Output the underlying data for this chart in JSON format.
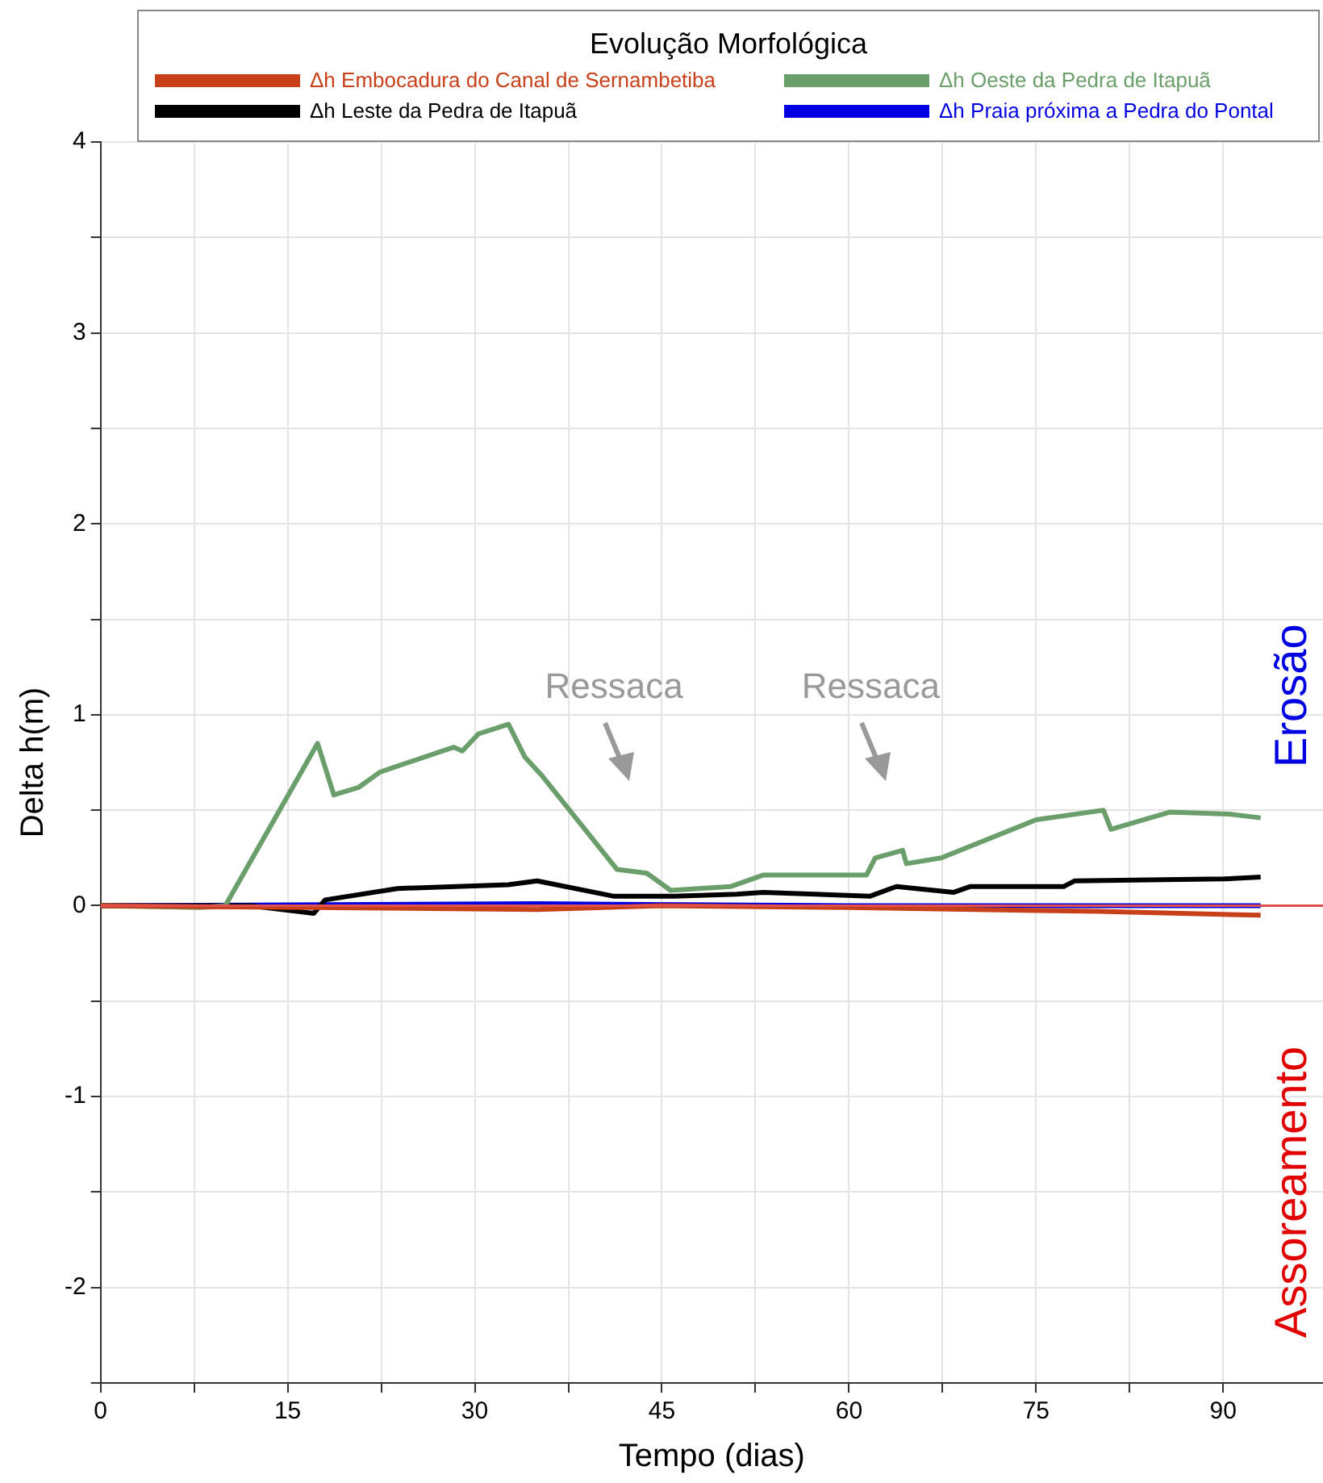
{
  "chart_data": {
    "type": "line",
    "legend_title": "Evolução Morfológica",
    "xlabel": "Tempo (dias)",
    "ylabel": "Delta h(m)",
    "xlim": [
      0,
      98
    ],
    "xticks": [
      0,
      {
        "value": 7.5,
        "label": null
      },
      15,
      {
        "value": 22.5,
        "label": null
      },
      30,
      {
        "value": 37.5,
        "label": null
      },
      45,
      {
        "value": 52.5,
        "label": null
      },
      60,
      {
        "value": 67.5,
        "label": null
      },
      75,
      {
        "value": 82.5,
        "label": null
      },
      90
    ],
    "ylim": [
      -2.5,
      4
    ],
    "yticks": [
      {
        "value": -2.5,
        "label": null
      },
      -2,
      {
        "value": -1.5,
        "label": null
      },
      -1,
      {
        "value": -0.5,
        "label": null
      },
      0,
      {
        "value": 0.5,
        "label": null
      },
      1,
      {
        "value": 1.5,
        "label": null
      },
      2,
      {
        "value": 2.5,
        "label": null
      },
      3,
      {
        "value": 3.5,
        "label": null
      },
      4
    ],
    "grid": true,
    "legend": "top",
    "marker": "none",
    "line_style": "solid",
    "ref_lines": [
      {
        "axis": "y",
        "value": 0,
        "color": "#e05050"
      }
    ],
    "annotations": [
      "Ressaca",
      "Ressaca",
      "Erosão",
      "Assoreamento"
    ],
    "series": [
      {
        "name": "Δh Embocadura do Canal de Sernambetiba",
        "color": "#c8401a",
        "x": [
          0,
          17,
          35,
          45,
          60,
          80,
          93
        ],
        "values": [
          0,
          -0.01,
          -0.02,
          0,
          -0.01,
          -0.03,
          -0.05
        ]
      },
      {
        "name": "Δh Oeste da Pedra de Itapuã",
        "color": "#6a9e6a",
        "x": [
          0,
          8,
          10,
          17.4,
          18.7,
          20.7,
          22.4,
          28.3,
          29,
          30.3,
          32.7,
          34,
          35.4,
          41.4,
          43.8,
          45.7,
          50.5,
          53.1,
          61.4,
          62.1,
          64.3,
          64.6,
          67.4,
          75,
          80.4,
          81,
          85.7,
          90.5,
          93
        ],
        "values": [
          0,
          -0.01,
          0,
          0.85,
          0.58,
          0.62,
          0.7,
          0.83,
          0.81,
          0.9,
          0.95,
          0.78,
          0.68,
          0.19,
          0.17,
          0.08,
          0.1,
          0.16,
          0.16,
          0.25,
          0.29,
          0.22,
          0.25,
          0.45,
          0.5,
          0.4,
          0.49,
          0.48,
          0.46
        ]
      },
      {
        "name": "Δh Leste da Pedra de Itapuã",
        "color": "#000000",
        "x": [
          0,
          12,
          17.1,
          18,
          23.8,
          32.7,
          35,
          41.1,
          46,
          51,
          53.1,
          61.7,
          63.8,
          68.4,
          69.7,
          77.2,
          78.1,
          90.1,
          93
        ],
        "values": [
          0,
          0,
          -0.04,
          0.03,
          0.09,
          0.11,
          0.13,
          0.05,
          0.05,
          0.06,
          0.07,
          0.05,
          0.1,
          0.07,
          0.1,
          0.1,
          0.13,
          0.14,
          0.15
        ]
      },
      {
        "name": "Δh Praia próxima a Pedra do Pontal",
        "color": "#0000e0",
        "x": [
          0,
          35,
          60,
          93
        ],
        "values": [
          0,
          0.01,
          0,
          0
        ]
      }
    ]
  }
}
